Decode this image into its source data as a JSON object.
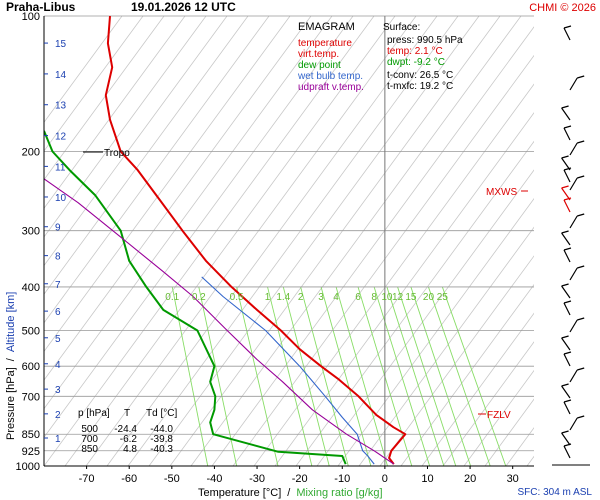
{
  "header": {
    "station": "Praha-Libus",
    "datetime": "19.01.2026 12 UTC",
    "credit": "CHMI © 2026"
  },
  "legend": {
    "title": "EMAGRAM",
    "items": [
      {
        "label": "temperature",
        "color": "#dd0000"
      },
      {
        "label": "virt.temp.",
        "color": "#dd0000"
      },
      {
        "label": "dew point",
        "color": "#009900"
      },
      {
        "label": "wet bulb temp.",
        "color": "#3366cc"
      },
      {
        "label": "udpraft v.temp.",
        "color": "#990099"
      }
    ]
  },
  "surface_box": {
    "title": "Surface:",
    "press": "press: 990.5 hPa",
    "temp": "temp: 2.1 °C",
    "dwpt": "dwpt: -9.2 °C",
    "tconv": "t-conv: 26.5 °C",
    "tmxfc": "t-mxfc: 19.2 °C"
  },
  "level_table": {
    "headers": [
      "p [hPa]",
      "T",
      "Td [°C]"
    ],
    "rows": [
      [
        "500",
        "-24.4",
        "-44.0"
      ],
      [
        "700",
        "-6.2",
        "-39.8"
      ],
      [
        "850",
        "4.8",
        "-40.3"
      ]
    ]
  },
  "annotations": {
    "tropo": "Tropo",
    "mxws": "MXWS",
    "fzlv": "FZLV",
    "sfc": "SFC: 304 m ASL"
  },
  "mixing_ratio_labels": [
    "0.1",
    "0.2",
    "0.5",
    "1",
    "1.4",
    "2",
    "3",
    "4",
    "6",
    "8",
    "10",
    "12",
    "15",
    "20",
    "25"
  ],
  "axis_titles": {
    "y_pressure": "Pressure [hPa]",
    "y_sep": "/",
    "y_altitude": "Altitude [km]",
    "x_temperature": "Temperature [°C]",
    "x_sep": "/",
    "x_mixing": "Mixing ratio [g/kg]"
  },
  "colors": {
    "temperature": "#dd0000",
    "dewpoint": "#009900",
    "wetbulb": "#3366cc",
    "updraft": "#990099",
    "mixing": "#88dd66",
    "altitude": "#1a3fb0",
    "grid": "#999999",
    "skewed": "#c8c8c8"
  },
  "chart_data": {
    "type": "line",
    "title": "Praha-Libus 19.01.2026 12 UTC",
    "xlabel": "Temperature [°C]",
    "ylabel": "Pressure [hPa]",
    "xlim": [
      -80,
      35
    ],
    "ylim": [
      1000,
      100
    ],
    "y_scale": "log",
    "x_ticks": [
      "-70",
      "-60",
      "-50",
      "-40",
      "-30",
      "-20",
      "-10",
      "0",
      "10",
      "20",
      "30"
    ],
    "y_ticks": [
      "100",
      "200",
      "300",
      "400",
      "500",
      "600",
      "700",
      "850",
      "925",
      "1000"
    ],
    "altitude_ticks_km": [
      "1",
      "2",
      "3",
      "4",
      "5",
      "6",
      "7",
      "8",
      "9",
      "10",
      "11",
      "12",
      "13",
      "14",
      "15"
    ],
    "grid": true,
    "series": [
      {
        "name": "temperature",
        "points": [
          [
            2.1,
            990.5
          ],
          [
            1.0,
            960
          ],
          [
            1.5,
            925
          ],
          [
            4.8,
            850
          ],
          [
            2.0,
            820
          ],
          [
            -2.0,
            770
          ],
          [
            -6.2,
            700
          ],
          [
            -11,
            640
          ],
          [
            -15,
            600
          ],
          [
            -20,
            550
          ],
          [
            -24.4,
            500
          ],
          [
            -30,
            450
          ],
          [
            -36,
            400
          ],
          [
            -42,
            350
          ],
          [
            -47.5,
            300
          ],
          [
            -53,
            255
          ],
          [
            -58,
            220
          ],
          [
            -62,
            200
          ],
          [
            -64.5,
            170
          ],
          [
            -65.5,
            150
          ],
          [
            -64,
            130
          ],
          [
            -65,
            115
          ],
          [
            -64.5,
            100
          ]
        ]
      },
      {
        "name": "dew point",
        "points": [
          [
            -9.2,
            990.5
          ],
          [
            -10,
            950
          ],
          [
            -25,
            930
          ],
          [
            -40.3,
            850
          ],
          [
            -41,
            800
          ],
          [
            -40,
            750
          ],
          [
            -39.8,
            700
          ],
          [
            -41,
            650
          ],
          [
            -40,
            600
          ],
          [
            -44,
            500
          ],
          [
            -52,
            450
          ],
          [
            -56,
            400
          ],
          [
            -60,
            350
          ],
          [
            -62,
            300
          ],
          [
            -68,
            250
          ],
          [
            -74,
            220
          ],
          [
            -78,
            200
          ],
          [
            -80,
            180
          ]
        ]
      },
      {
        "name": "wet bulb temp.",
        "points": [
          [
            -2.5,
            990.5
          ],
          [
            -4,
            950
          ],
          [
            -5.2,
            925
          ],
          [
            -6.5,
            850
          ],
          [
            -10,
            780
          ],
          [
            -14,
            700
          ],
          [
            -20,
            600
          ],
          [
            -28,
            500
          ],
          [
            -38,
            420
          ],
          [
            -43,
            380
          ]
        ]
      },
      {
        "name": "udpraft v.temp.",
        "points": [
          [
            2.1,
            990.5
          ],
          [
            -2.5,
            925
          ],
          [
            -9,
            850
          ],
          [
            -17,
            750
          ],
          [
            -24,
            650
          ],
          [
            -30,
            580
          ],
          [
            -37,
            500
          ],
          [
            -45,
            420
          ],
          [
            -52,
            370
          ],
          [
            -62,
            310
          ],
          [
            -72,
            260
          ],
          [
            -80,
            230
          ]
        ]
      }
    ]
  }
}
